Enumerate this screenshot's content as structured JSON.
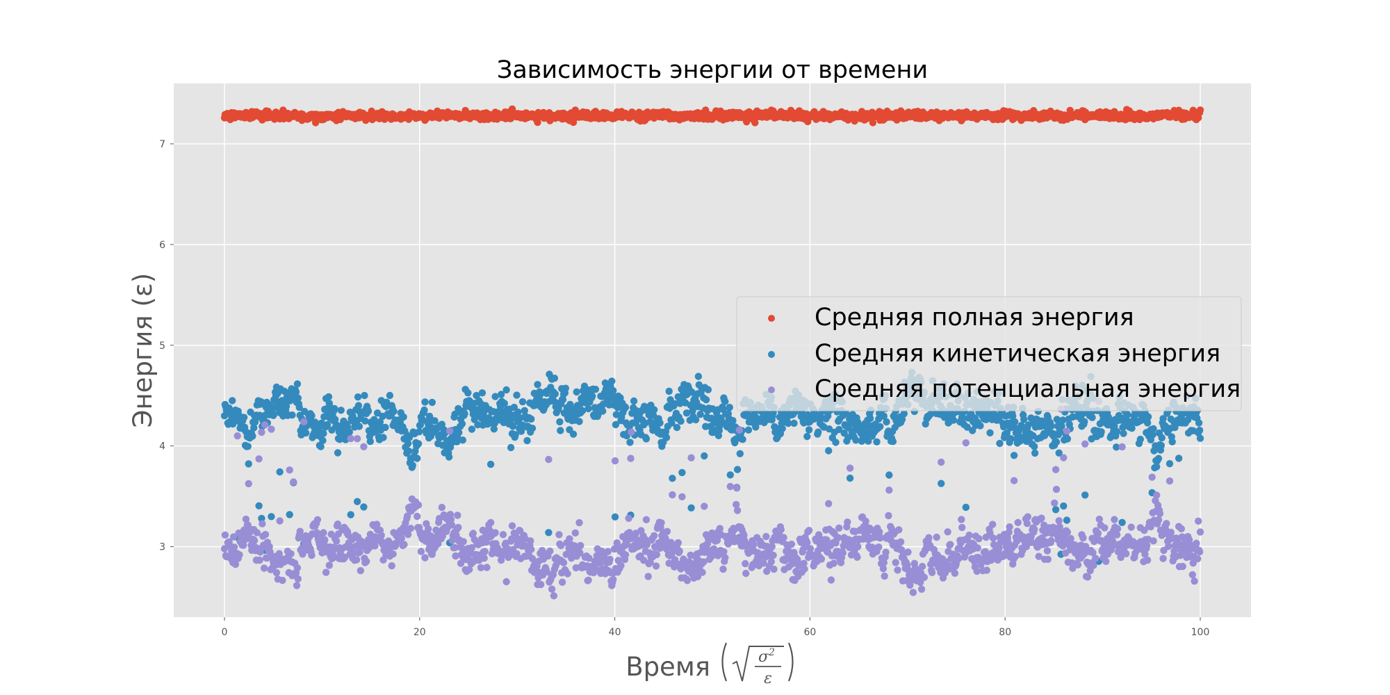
{
  "chart_data": {
    "type": "scatter",
    "title": "Зависимость энергии от времени",
    "xlabel": "Время",
    "ylabel": "Энергия (ε)",
    "xlim": [
      -5.2,
      105.2
    ],
    "ylim": [
      2.3,
      7.6
    ],
    "x_ticks": [
      0,
      20,
      40,
      60,
      80,
      100
    ],
    "y_ticks": [
      3,
      4,
      5,
      6,
      7
    ],
    "grid": true,
    "legend_position": "center-right",
    "style": "ggplot",
    "series": [
      {
        "name": "Средняя полная энергия",
        "color": "#E24A33",
        "x_range": [
          0,
          100
        ],
        "mean": 7.28,
        "spread": 0.02,
        "max": 7.37,
        "min": 7.21
      },
      {
        "name": "Средняя кинетическая энергия",
        "color": "#348ABD",
        "x_range": [
          0,
          100
        ],
        "mean": 4.27,
        "spread": 0.15,
        "max": 4.83,
        "min": 2.55
      },
      {
        "name": "Средняя потенциальная энергия",
        "color": "#988ED5",
        "x_range": [
          0,
          100
        ],
        "mean": 3.01,
        "spread": 0.15,
        "max": 4.8,
        "min": 2.45
      }
    ]
  }
}
